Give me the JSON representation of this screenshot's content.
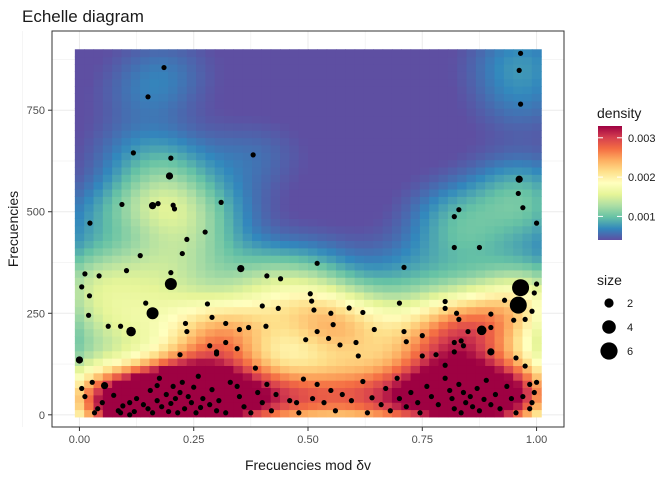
{
  "chart_data": {
    "type": "scatter",
    "title": "Echelle diagram",
    "xlabel": "Frecuencies mod δv",
    "ylabel": "Frecuencies",
    "xlim": [
      -0.06,
      1.06
    ],
    "ylim": [
      -30,
      945
    ],
    "x_ticks": [
      {
        "value": 0.0,
        "label": "0.00"
      },
      {
        "value": 0.25,
        "label": "0.25"
      },
      {
        "value": 0.5,
        "label": "0.50"
      },
      {
        "value": 0.75,
        "label": "0.75"
      },
      {
        "value": 1.0,
        "label": "1.00"
      }
    ],
    "y_ticks": [
      {
        "value": 0,
        "label": "0"
      },
      {
        "value": 250,
        "label": "250"
      },
      {
        "value": 500,
        "label": "500"
      },
      {
        "value": 750,
        "label": "750"
      }
    ],
    "grid": true,
    "density_legend": {
      "title": "density",
      "range": [
        0.0004,
        0.0033
      ],
      "ticks": [
        {
          "value": 0.001,
          "label": "0.001"
        },
        {
          "value": 0.002,
          "label": "0.002"
        },
        {
          "value": 0.003,
          "label": "0.003"
        }
      ],
      "colors": [
        "#5e4fa2",
        "#3288bd",
        "#66c2a5",
        "#abdda4",
        "#e6f598",
        "#ffffbf",
        "#fee08b",
        "#fdae61",
        "#f46d43",
        "#d53e4f",
        "#9e0142"
      ]
    },
    "size_legend": {
      "title": "size",
      "entries": [
        {
          "value": 2,
          "label": "2"
        },
        {
          "value": 4,
          "label": "4"
        },
        {
          "value": 6,
          "label": "6"
        }
      ]
    },
    "points": [
      [
        0.185,
        855,
        1
      ],
      [
        0.15,
        783,
        1
      ],
      [
        0.118,
        645,
        1
      ],
      [
        0.2,
        632,
        1
      ],
      [
        0.38,
        640,
        1
      ],
      [
        0.965,
        890,
        1
      ],
      [
        0.962,
        848,
        1
      ],
      [
        0.965,
        765,
        1
      ],
      [
        0.197,
        588,
        2
      ],
      [
        0.205,
        516,
        1
      ],
      [
        0.208,
        507,
        1
      ],
      [
        0.172,
        520,
        1
      ],
      [
        0.16,
        515,
        2
      ],
      [
        0.093,
        518,
        1
      ],
      [
        0.31,
        523,
        1
      ],
      [
        0.275,
        450,
        1
      ],
      [
        0.235,
        432,
        1
      ],
      [
        0.023,
        472,
        1
      ],
      [
        0.962,
        580,
        2
      ],
      [
        0.96,
        545,
        1
      ],
      [
        0.97,
        510,
        1
      ],
      [
        1.0,
        472,
        1
      ],
      [
        0.82,
        488,
        1
      ],
      [
        0.83,
        505,
        1
      ],
      [
        0.82,
        412,
        1
      ],
      [
        0.875,
        412,
        1
      ],
      [
        0.225,
        397,
        1
      ],
      [
        0.2,
        350,
        1
      ],
      [
        0.103,
        355,
        1
      ],
      [
        0.133,
        392,
        1
      ],
      [
        0.353,
        360,
        2
      ],
      [
        0.41,
        342,
        1
      ],
      [
        0.44,
        335,
        1
      ],
      [
        0.52,
        373,
        1
      ],
      [
        0.71,
        363,
        1
      ],
      [
        0.012,
        347,
        1
      ],
      [
        0.043,
        342,
        1
      ],
      [
        0.005,
        315,
        1
      ],
      [
        0.022,
        293,
        1
      ],
      [
        0.2,
        322,
        4
      ],
      [
        0.16,
        250,
        4
      ],
      [
        0.145,
        275,
        1
      ],
      [
        0.113,
        205,
        3
      ],
      [
        0.09,
        218,
        1
      ],
      [
        0.02,
        245,
        1
      ],
      [
        0.28,
        273,
        1
      ],
      [
        0.29,
        240,
        1
      ],
      [
        0.4,
        268,
        1
      ],
      [
        0.435,
        262,
        1
      ],
      [
        0.505,
        298,
        1
      ],
      [
        0.508,
        280,
        1
      ],
      [
        0.513,
        258,
        1
      ],
      [
        0.59,
        263,
        1
      ],
      [
        0.55,
        250,
        1
      ],
      [
        0.555,
        222,
        1
      ],
      [
        0.62,
        252,
        1
      ],
      [
        0.7,
        275,
        1
      ],
      [
        0.8,
        279,
        1
      ],
      [
        0.8,
        262,
        1
      ],
      [
        0.825,
        250,
        1
      ],
      [
        0.83,
        235,
        1
      ],
      [
        0.93,
        282,
        1
      ],
      [
        0.96,
        270,
        6
      ],
      [
        0.965,
        313,
        6
      ],
      [
        1.0,
        322,
        1
      ],
      [
        0.995,
        300,
        1
      ],
      [
        0.99,
        255,
        1
      ],
      [
        0.975,
        235,
        1
      ],
      [
        0.95,
        233,
        1
      ],
      [
        0.9,
        248,
        1
      ],
      [
        0.063,
        218,
        1
      ],
      [
        0.232,
        225,
        1
      ],
      [
        0.235,
        205,
        1
      ],
      [
        0.32,
        225,
        1
      ],
      [
        0.35,
        210,
        1
      ],
      [
        0.37,
        215,
        1
      ],
      [
        0.408,
        218,
        1
      ],
      [
        0.52,
        205,
        1
      ],
      [
        0.545,
        188,
        1
      ],
      [
        0.57,
        172,
        1
      ],
      [
        0.605,
        178,
        1
      ],
      [
        0.645,
        210,
        1
      ],
      [
        0.71,
        205,
        1
      ],
      [
        0.715,
        180,
        1
      ],
      [
        0.85,
        205,
        1
      ],
      [
        0.88,
        208,
        3
      ],
      [
        0.9,
        215,
        1
      ],
      [
        0.75,
        195,
        1
      ],
      [
        0.82,
        178,
        1
      ],
      [
        0.835,
        182,
        1
      ],
      [
        0.84,
        170,
        1
      ],
      [
        0.82,
        155,
        1
      ],
      [
        0.0,
        135,
        2
      ],
      [
        0.22,
        148,
        1
      ],
      [
        0.3,
        150,
        1
      ],
      [
        0.285,
        170,
        1
      ],
      [
        0.3,
        155,
        1
      ],
      [
        0.345,
        163,
        1
      ],
      [
        0.32,
        178,
        1
      ],
      [
        0.495,
        185,
        1
      ],
      [
        0.61,
        145,
        1
      ],
      [
        0.75,
        145,
        1
      ],
      [
        0.78,
        148,
        1
      ],
      [
        0.8,
        122,
        1
      ],
      [
        0.9,
        155,
        2
      ],
      [
        0.955,
        140,
        1
      ],
      [
        0.005,
        65,
        1
      ],
      [
        0.012,
        45,
        1
      ],
      [
        0.028,
        80,
        1
      ],
      [
        0.055,
        72,
        2
      ],
      [
        0.04,
        15,
        1
      ],
      [
        0.033,
        5,
        1
      ],
      [
        0.05,
        30,
        1
      ],
      [
        0.075,
        48,
        1
      ],
      [
        0.085,
        10,
        1
      ],
      [
        0.09,
        5,
        1
      ],
      [
        0.095,
        22,
        1
      ],
      [
        0.11,
        30,
        1
      ],
      [
        0.11,
        0,
        1
      ],
      [
        0.12,
        8,
        1
      ],
      [
        0.125,
        40,
        1
      ],
      [
        0.14,
        25,
        1
      ],
      [
        0.15,
        15,
        1
      ],
      [
        0.155,
        60,
        1
      ],
      [
        0.16,
        5,
        1
      ],
      [
        0.17,
        35,
        1
      ],
      [
        0.17,
        72,
        1
      ],
      [
        0.175,
        90,
        1
      ],
      [
        0.18,
        20,
        1
      ],
      [
        0.19,
        50,
        1
      ],
      [
        0.195,
        8,
        1
      ],
      [
        0.2,
        28,
        1
      ],
      [
        0.205,
        70,
        1
      ],
      [
        0.21,
        40,
        1
      ],
      [
        0.215,
        5,
        1
      ],
      [
        0.22,
        55,
        1
      ],
      [
        0.225,
        80,
        1
      ],
      [
        0.23,
        15,
        1
      ],
      [
        0.238,
        45,
        1
      ],
      [
        0.245,
        30,
        1
      ],
      [
        0.25,
        68,
        1
      ],
      [
        0.255,
        5,
        1
      ],
      [
        0.26,
        95,
        1
      ],
      [
        0.265,
        18,
        1
      ],
      [
        0.27,
        40,
        1
      ],
      [
        0.285,
        25,
        1
      ],
      [
        0.29,
        62,
        1
      ],
      [
        0.3,
        10,
        1
      ],
      [
        0.305,
        35,
        1
      ],
      [
        0.32,
        5,
        1
      ],
      [
        0.33,
        80,
        1
      ],
      [
        0.345,
        70,
        1
      ],
      [
        0.35,
        45,
        1
      ],
      [
        0.36,
        20,
        1
      ],
      [
        0.375,
        5,
        1
      ],
      [
        0.385,
        115,
        1
      ],
      [
        0.39,
        55,
        1
      ],
      [
        0.4,
        30,
        1
      ],
      [
        0.41,
        75,
        1
      ],
      [
        0.42,
        10,
        1
      ],
      [
        0.43,
        50,
        1
      ],
      [
        0.46,
        35,
        1
      ],
      [
        0.475,
        30,
        1
      ],
      [
        0.48,
        5,
        1
      ],
      [
        0.49,
        88,
        1
      ],
      [
        0.51,
        40,
        1
      ],
      [
        0.52,
        75,
        1
      ],
      [
        0.535,
        30,
        1
      ],
      [
        0.55,
        60,
        1
      ],
      [
        0.56,
        10,
        1
      ],
      [
        0.575,
        50,
        1
      ],
      [
        0.595,
        35,
        1
      ],
      [
        0.62,
        82,
        1
      ],
      [
        0.63,
        5,
        1
      ],
      [
        0.64,
        42,
        1
      ],
      [
        0.66,
        25,
        1
      ],
      [
        0.67,
        65,
        1
      ],
      [
        0.68,
        10,
        1
      ],
      [
        0.695,
        90,
        1
      ],
      [
        0.7,
        40,
        1
      ],
      [
        0.715,
        20,
        1
      ],
      [
        0.725,
        55,
        1
      ],
      [
        0.74,
        30,
        1
      ],
      [
        0.745,
        5,
        1
      ],
      [
        0.76,
        70,
        1
      ],
      [
        0.77,
        45,
        1
      ],
      [
        0.785,
        25,
        1
      ],
      [
        0.8,
        90,
        1
      ],
      [
        0.81,
        60,
        1
      ],
      [
        0.815,
        40,
        1
      ],
      [
        0.82,
        15,
        1
      ],
      [
        0.83,
        75,
        1
      ],
      [
        0.835,
        5,
        1
      ],
      [
        0.84,
        55,
        1
      ],
      [
        0.845,
        30,
        1
      ],
      [
        0.855,
        45,
        1
      ],
      [
        0.86,
        20,
        1
      ],
      [
        0.87,
        65,
        1
      ],
      [
        0.875,
        10,
        1
      ],
      [
        0.885,
        38,
        1
      ],
      [
        0.89,
        85,
        1
      ],
      [
        0.9,
        25,
        1
      ],
      [
        0.91,
        50,
        1
      ],
      [
        0.92,
        15,
        1
      ],
      [
        0.935,
        70,
        1
      ],
      [
        0.945,
        40,
        1
      ],
      [
        0.955,
        5,
        1
      ],
      [
        0.97,
        45,
        1
      ],
      [
        0.985,
        75,
        1
      ],
      [
        0.99,
        30,
        1
      ],
      [
        1.0,
        80,
        1
      ],
      [
        0.995,
        55,
        1
      ],
      [
        0.985,
        15,
        1
      ],
      [
        0.975,
        120,
        1
      ]
    ]
  }
}
